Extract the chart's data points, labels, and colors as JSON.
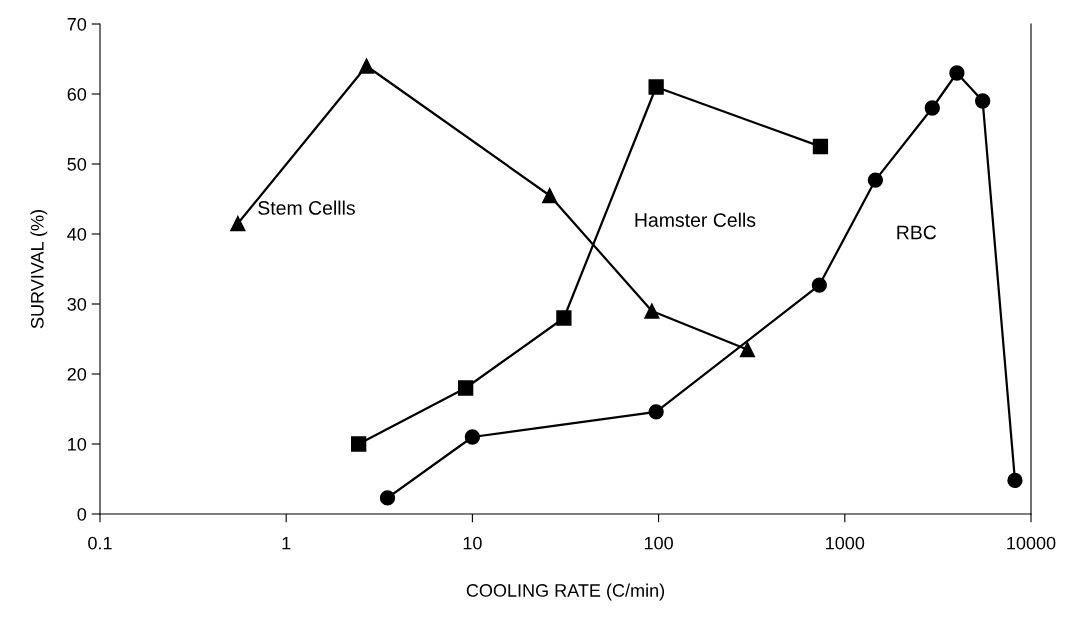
{
  "chart_data": {
    "type": "line",
    "xlabel": "COOLING RATE (C/min)",
    "ylabel": "SURVIVAL (%)",
    "log": "x",
    "xlim": [
      0.1,
      10000
    ],
    "xticks": [
      0.1,
      1,
      10,
      100,
      1000,
      10000
    ],
    "ylim": [
      0,
      70
    ],
    "yticks": [
      0,
      10,
      20,
      30,
      40,
      50,
      60,
      70
    ],
    "grid": false,
    "legend": false,
    "series": [
      {
        "name": "Stem Cellls",
        "color": "#000000",
        "marker": "triangle",
        "x": [
          0.55,
          2.7,
          26,
          92,
          300
        ],
        "values": [
          41.5,
          64,
          45.5,
          29,
          23.5
        ]
      },
      {
        "name": "Hamster Cells",
        "color": "#000000",
        "marker": "square",
        "x": [
          2.45,
          9.2,
          31,
          97,
          740
        ],
        "values": [
          10,
          18,
          28,
          61,
          52.5
        ]
      },
      {
        "name": "RBC",
        "color": "#000000",
        "marker": "circle",
        "x": [
          3.5,
          10,
          97,
          730,
          1460,
          2950,
          4000,
          5500,
          8200
        ],
        "values": [
          2.3,
          11,
          14.6,
          32.7,
          47.7,
          58,
          63,
          59,
          4.8
        ]
      }
    ]
  }
}
